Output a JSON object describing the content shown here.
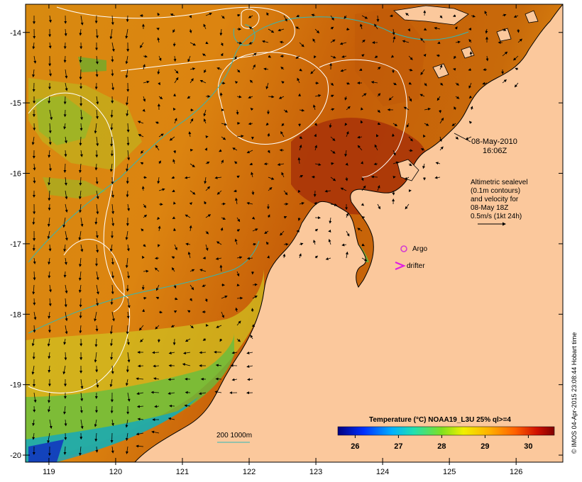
{
  "map": {
    "longitude_ticks": [
      "119",
      "120",
      "121",
      "122",
      "123",
      "124",
      "125",
      "126"
    ],
    "latitude_ticks": [
      "-14",
      "-15",
      "-16",
      "-17",
      "-18",
      "-19",
      "-20"
    ],
    "lon_range": [
      118.65,
      126.7
    ],
    "lat_range": [
      -20.1,
      -13.6
    ]
  },
  "annotations": {
    "date_line1": "08-May-2010",
    "date_line2": "16:06Z",
    "legend_lines": [
      "Altimetric sealevel",
      "(0.1m contours)",
      "and velocity for",
      "08-May 18Z",
      "0.5m/s (1kt 24h)"
    ],
    "argo_label": "Argo",
    "drifter_label": "drifter",
    "bathymetry_label": "200  1000m"
  },
  "colorbar": {
    "title": "Temperature (°C) NOAA19_L3U 25% ql>=4",
    "ticks": [
      "26",
      "27",
      "28",
      "29",
      "30"
    ]
  },
  "credit": "© IMOS 04-Apr-2015 23:08:44 Hobart time",
  "colors": {
    "land": "#fbc89c",
    "contour": "#ffffff",
    "bathymetry": "#2fb8b8",
    "argo": "#d23bd2",
    "drifter": "#e020e0"
  }
}
